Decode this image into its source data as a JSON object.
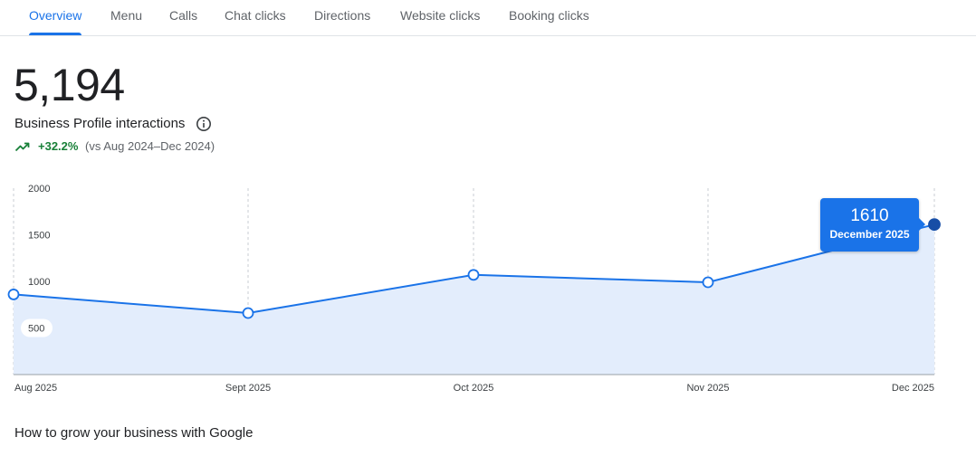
{
  "tabs": [
    {
      "label": "Overview",
      "active": true
    },
    {
      "label": "Menu"
    },
    {
      "label": "Calls"
    },
    {
      "label": "Chat clicks"
    },
    {
      "label": "Directions"
    },
    {
      "label": "Website clicks"
    },
    {
      "label": "Booking clicks"
    }
  ],
  "summary": {
    "total": "5,194",
    "label": "Business Profile interactions",
    "info_icon": "info-icon",
    "trend_icon": "trending-up-icon",
    "change": "+32.2%",
    "comparison": "(vs Aug 2024–Dec 2024)"
  },
  "colors": {
    "accent": "#1a73e8",
    "positive": "#188038",
    "area_fill": "#e3edfc",
    "text_primary": "#202124",
    "text_secondary": "#5f6368"
  },
  "chart_data": {
    "type": "area",
    "categories": [
      "Aug 2025",
      "Sept 2025",
      "Oct 2025",
      "Nov 2025",
      "Dec 2025"
    ],
    "values": [
      860,
      660,
      1070,
      990,
      1610
    ],
    "y_ticks": [
      "2000",
      "1500",
      "1000",
      "500"
    ],
    "ylim": [
      0,
      2000
    ],
    "grid": "vertical dashed",
    "highlighted_point": {
      "value": "1610",
      "label": "December 2025"
    }
  },
  "section": {
    "title": "How to grow your business with Google"
  }
}
